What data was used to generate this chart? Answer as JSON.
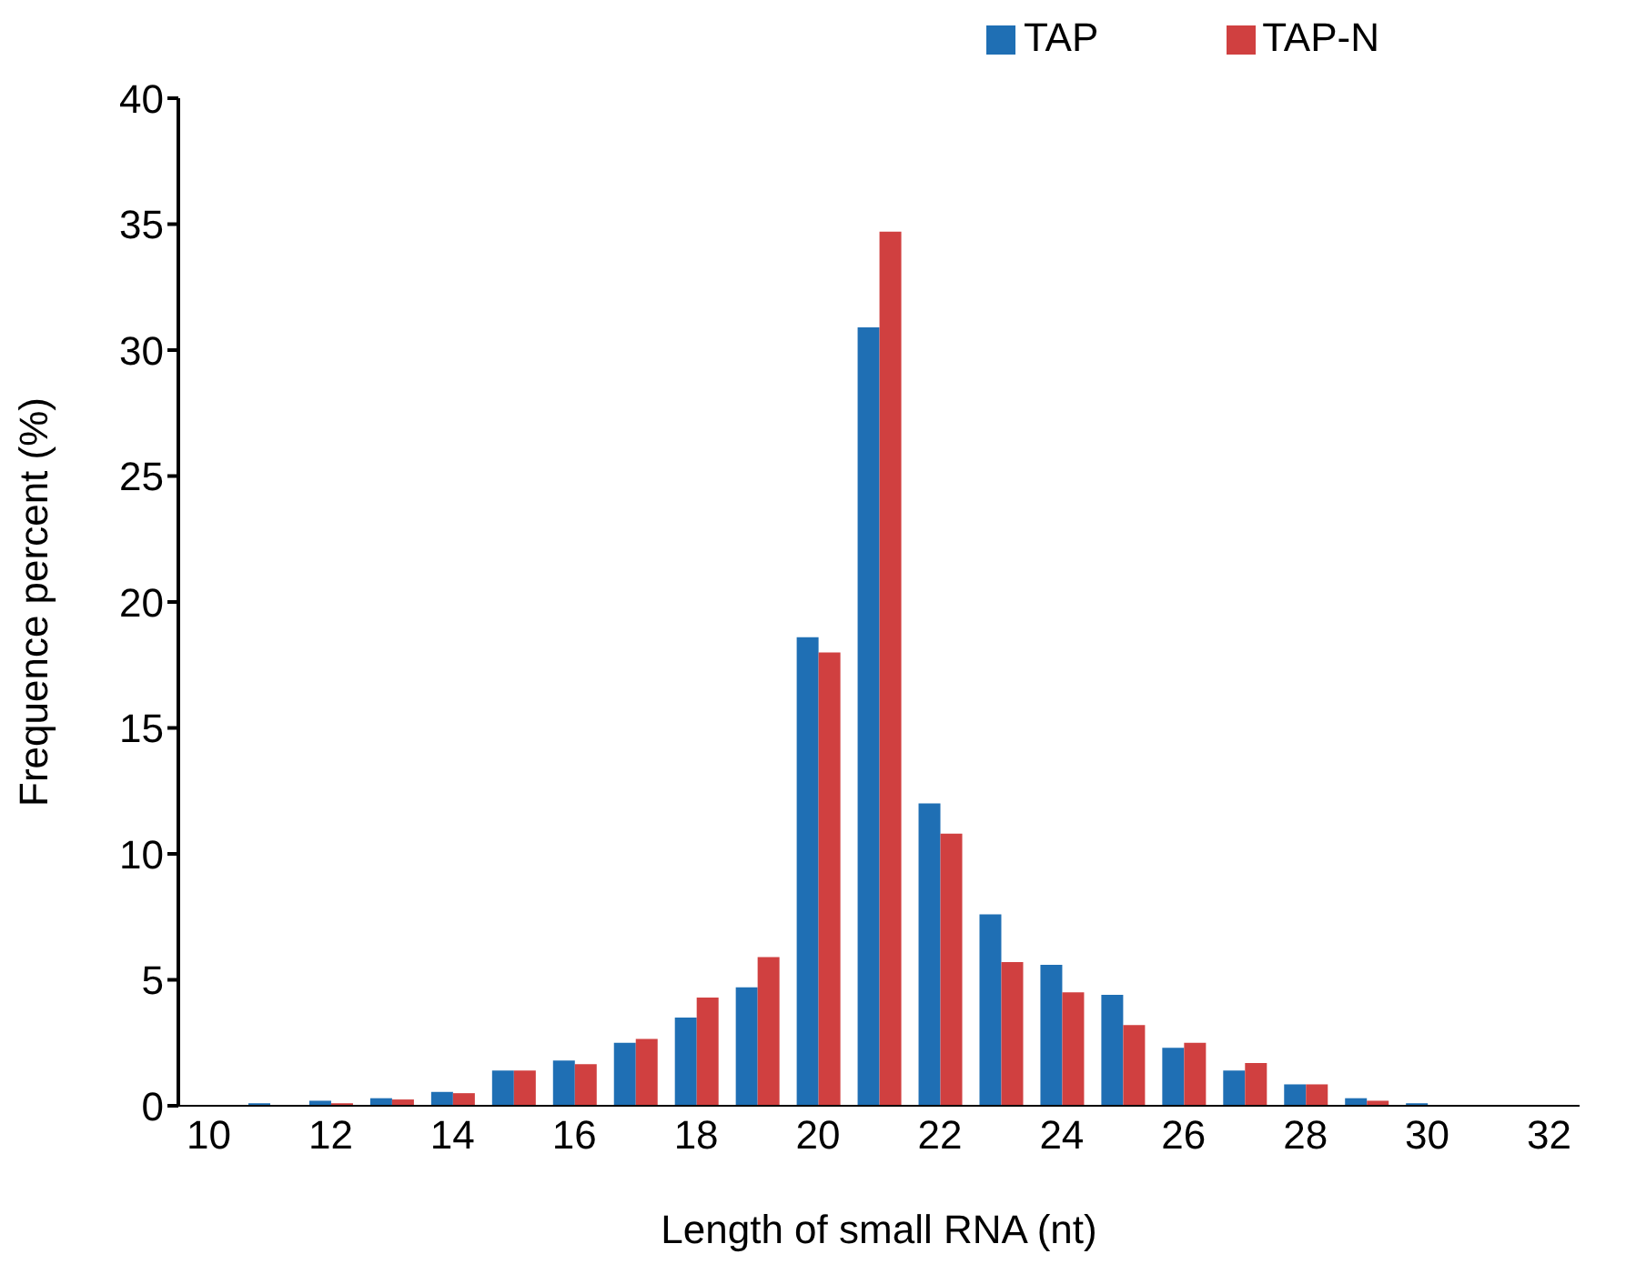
{
  "chart_data": {
    "type": "bar",
    "xlabel": "Length of small RNA (nt)",
    "ylabel": "Frequence percent (%)",
    "categories": [
      "10",
      null,
      "12",
      null,
      "14",
      null,
      "16",
      null,
      "18",
      null,
      "20",
      null,
      "22",
      null,
      "24",
      null,
      "26",
      null,
      "28",
      null,
      "30",
      null,
      "32"
    ],
    "series": [
      {
        "name": "TAP",
        "color": "#1f6fb4",
        "values": [
          0,
          0.1,
          0.2,
          0.3,
          0.55,
          1.4,
          1.8,
          2.5,
          3.5,
          4.7,
          18.6,
          30.9,
          12.0,
          7.6,
          5.6,
          4.4,
          2.3,
          1.4,
          0.85,
          0.3,
          0.1,
          0,
          0
        ]
      },
      {
        "name": "TAP-N",
        "color": "#d04040",
        "values": [
          0,
          0,
          0.1,
          0.25,
          0.5,
          1.4,
          1.65,
          2.65,
          4.3,
          5.9,
          18.0,
          34.7,
          10.8,
          5.7,
          4.5,
          3.2,
          2.5,
          1.7,
          0.85,
          0.2,
          0,
          0,
          0
        ]
      }
    ],
    "ylim": [
      0,
      40
    ],
    "yticks": [
      0,
      5,
      10,
      15,
      20,
      25,
      30,
      35,
      40
    ],
    "grid": false,
    "legend": "top right"
  }
}
